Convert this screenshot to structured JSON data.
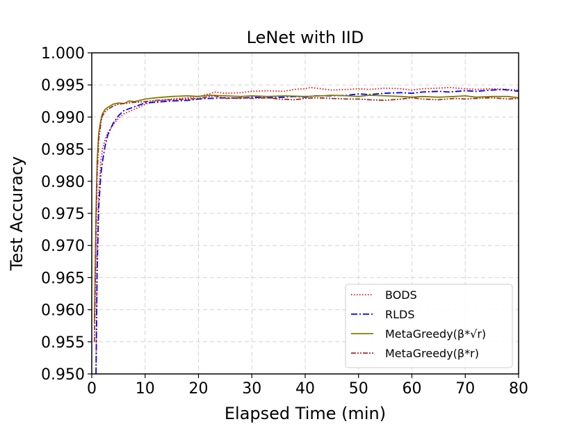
{
  "chart_data": {
    "type": "line",
    "title": "LeNet with IID",
    "xlabel": "Elapsed Time (min)",
    "ylabel": "Test Accuracy",
    "xlim": [
      0,
      80
    ],
    "ylim": [
      0.95,
      1.0
    ],
    "xticks": [
      "0",
      "10",
      "20",
      "30",
      "40",
      "50",
      "60",
      "70",
      "80"
    ],
    "yticks": [
      "0.950",
      "0.955",
      "0.960",
      "0.965",
      "0.970",
      "0.975",
      "0.980",
      "0.985",
      "0.990",
      "0.995",
      "1.000"
    ],
    "grid": true,
    "legend_position": "lower-right",
    "series": [
      {
        "name": "BODS",
        "color": "#ff0000",
        "dash": "dotted",
        "x": [
          0.8,
          1,
          1.3,
          1.7,
          2,
          2.5,
          3,
          4,
          5,
          6,
          8,
          10,
          12,
          15,
          18,
          20,
          22,
          23,
          25,
          28,
          30,
          33,
          36,
          38,
          40,
          41,
          43,
          45,
          48,
          50,
          52,
          55,
          58,
          60,
          62,
          65,
          67,
          70,
          72,
          75,
          78,
          80
        ],
        "y": [
          0.95,
          0.968,
          0.978,
          0.983,
          0.985,
          0.9865,
          0.9875,
          0.9888,
          0.9898,
          0.9905,
          0.9912,
          0.992,
          0.9925,
          0.9928,
          0.993,
          0.9932,
          0.9936,
          0.9939,
          0.9937,
          0.9938,
          0.994,
          0.9941,
          0.994,
          0.9943,
          0.9944,
          0.9946,
          0.9944,
          0.9942,
          0.9943,
          0.9944,
          0.9943,
          0.9945,
          0.9944,
          0.9942,
          0.9944,
          0.9945,
          0.9946,
          0.9944,
          0.9943,
          0.9944,
          0.9943,
          0.9942
        ]
      },
      {
        "name": "RLDS",
        "color": "#0000ff",
        "dash": "dashdot",
        "x": [
          0.8,
          1,
          1.3,
          1.7,
          2,
          2.5,
          3,
          4,
          5,
          6,
          8,
          10,
          12,
          15,
          18,
          20,
          22,
          25,
          28,
          30,
          33,
          36,
          38,
          40,
          42,
          45,
          48,
          50,
          52,
          55,
          58,
          60,
          62,
          65,
          67,
          70,
          72,
          75,
          77,
          80
        ],
        "y": [
          0.95,
          0.966,
          0.976,
          0.981,
          0.983,
          0.9855,
          0.9872,
          0.989,
          0.9902,
          0.991,
          0.9916,
          0.9922,
          0.9923,
          0.9925,
          0.9926,
          0.9928,
          0.9929,
          0.993,
          0.9929,
          0.9931,
          0.993,
          0.9931,
          0.9932,
          0.9931,
          0.9933,
          0.9933,
          0.9934,
          0.9936,
          0.9935,
          0.9937,
          0.9938,
          0.9937,
          0.9939,
          0.994,
          0.9939,
          0.9941,
          0.994,
          0.9942,
          0.9943,
          0.994
        ]
      },
      {
        "name": "MetaGreedy(β*√r)",
        "color": "#808000",
        "dash": "solid",
        "x": [
          0.5,
          0.8,
          1,
          1.3,
          1.7,
          2,
          2.5,
          3,
          4,
          5,
          6,
          7,
          8,
          10,
          12,
          15,
          18,
          20,
          22,
          25,
          28,
          30,
          33,
          36,
          40,
          43,
          45,
          48,
          50,
          52,
          55,
          58,
          60,
          62,
          65,
          68,
          70,
          72,
          75,
          78,
          80
        ],
        "y": [
          0.958,
          0.975,
          0.983,
          0.9875,
          0.9895,
          0.9905,
          0.9912,
          0.9915,
          0.992,
          0.9922,
          0.9921,
          0.9925,
          0.9924,
          0.9928,
          0.993,
          0.9932,
          0.9933,
          0.9932,
          0.9934,
          0.9933,
          0.9932,
          0.9933,
          0.9932,
          0.9933,
          0.9932,
          0.9933,
          0.9934,
          0.9933,
          0.9932,
          0.9934,
          0.9933,
          0.9932,
          0.9931,
          0.9932,
          0.9931,
          0.9932,
          0.9933,
          0.9931,
          0.9932,
          0.9932,
          0.993
        ]
      },
      {
        "name": "MetaGreedy(β*r)",
        "color": "#a52a2a",
        "dash": "dashdotdot",
        "x": [
          0.5,
          0.8,
          1,
          1.3,
          1.7,
          2,
          2.5,
          3,
          4,
          5,
          6,
          8,
          10,
          12,
          15,
          18,
          20,
          23,
          25,
          28,
          30,
          33,
          35,
          38,
          40,
          42,
          45,
          48,
          50,
          52,
          55,
          58,
          60,
          62,
          65,
          68,
          70,
          72,
          75,
          78,
          80
        ],
        "y": [
          0.955,
          0.972,
          0.981,
          0.9865,
          0.989,
          0.9902,
          0.9908,
          0.9912,
          0.9917,
          0.992,
          0.9921,
          0.9923,
          0.9924,
          0.9926,
          0.9927,
          0.9928,
          0.9929,
          0.9933,
          0.9929,
          0.993,
          0.9929,
          0.993,
          0.9928,
          0.9927,
          0.9929,
          0.993,
          0.9929,
          0.9928,
          0.9928,
          0.9927,
          0.9926,
          0.9928,
          0.993,
          0.9928,
          0.9927,
          0.9929,
          0.9928,
          0.9929,
          0.993,
          0.9928,
          0.9929
        ]
      }
    ]
  },
  "legend": {
    "items": [
      {
        "label": "BODS"
      },
      {
        "label": "RLDS"
      },
      {
        "label": "MetaGreedy(β*√r)"
      },
      {
        "label": "MetaGreedy(β*r)"
      }
    ]
  }
}
